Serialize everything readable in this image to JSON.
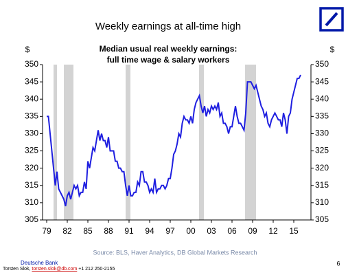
{
  "slide_title": "Weekly earnings at all-time high",
  "chart_data": {
    "type": "line",
    "title": [
      "Median usual real weekly earnings:",
      "full time wage & salary workers"
    ],
    "y_label": "$",
    "y2_label": "$",
    "x": [
      1979,
      1979.25,
      1979.5,
      1979.75,
      1980,
      1980.25,
      1980.5,
      1980.75,
      1981,
      1981.25,
      1981.5,
      1981.75,
      1982,
      1982.25,
      1982.5,
      1982.75,
      1983,
      1983.25,
      1983.5,
      1983.75,
      1984,
      1984.25,
      1984.5,
      1984.75,
      1985,
      1985.25,
      1985.5,
      1985.75,
      1986,
      1986.25,
      1986.5,
      1986.75,
      1987,
      1987.25,
      1987.5,
      1987.75,
      1988,
      1988.25,
      1988.5,
      1988.75,
      1989,
      1989.25,
      1989.5,
      1989.75,
      1990,
      1990.25,
      1990.5,
      1990.75,
      1991,
      1991.25,
      1991.5,
      1991.75,
      1992,
      1992.25,
      1992.5,
      1992.75,
      1993,
      1993.25,
      1993.5,
      1993.75,
      1994,
      1994.25,
      1994.5,
      1994.75,
      1995,
      1995.25,
      1995.5,
      1995.75,
      1996,
      1996.25,
      1996.5,
      1996.75,
      1997,
      1997.25,
      1997.5,
      1997.75,
      1998,
      1998.25,
      1998.5,
      1998.75,
      1999,
      1999.25,
      1999.5,
      1999.75,
      2000,
      2000.25,
      2000.5,
      2000.75,
      2001,
      2001.25,
      2001.5,
      2001.75,
      2002,
      2002.25,
      2002.5,
      2002.75,
      2003,
      2003.25,
      2003.5,
      2003.75,
      2004,
      2004.25,
      2004.5,
      2004.75,
      2005,
      2005.25,
      2005.5,
      2005.75,
      2006,
      2006.25,
      2006.5,
      2006.75,
      2007,
      2007.25,
      2007.5,
      2007.75,
      2008,
      2008.25,
      2008.5,
      2008.75,
      2009,
      2009.25,
      2009.5,
      2009.75,
      2010,
      2010.25,
      2010.5,
      2010.75,
      2011,
      2011.25,
      2011.5,
      2011.75,
      2012,
      2012.25,
      2012.5,
      2012.75,
      2013,
      2013.25,
      2013.5,
      2013.75,
      2014,
      2014.25,
      2014.5,
      2014.75,
      2015,
      2015.25,
      2015.5,
      2015.75,
      2016
    ],
    "series": [
      {
        "color": "#1f1fe0",
        "values": [
          335,
          335,
          330,
          325,
          320,
          315,
          319,
          314,
          313,
          312,
          311,
          309,
          312,
          313,
          311,
          313,
          315,
          314,
          315,
          312,
          313,
          313,
          316,
          314,
          322,
          320,
          323,
          326,
          325,
          328,
          331,
          328,
          330,
          328,
          328,
          326,
          329,
          325,
          325,
          325,
          322,
          322,
          320,
          320,
          319,
          319,
          315,
          312,
          315,
          312,
          312,
          313,
          313,
          316,
          315,
          319,
          319,
          316,
          316,
          315,
          313,
          314,
          313,
          317,
          313,
          314,
          314,
          315,
          315,
          314,
          315,
          317,
          317,
          320,
          324,
          325,
          327,
          330,
          329,
          333,
          335,
          334,
          334,
          333,
          335,
          333,
          337,
          339,
          340,
          341,
          338,
          336,
          338,
          335,
          337,
          336,
          338,
          337,
          338,
          337,
          339,
          335,
          336,
          333,
          333,
          332,
          330,
          332,
          332,
          335,
          338,
          335,
          333,
          333,
          332,
          331,
          336,
          345,
          345,
          345,
          344,
          343,
          344,
          342,
          340,
          338,
          337,
          335,
          336,
          333,
          332,
          334,
          335,
          336,
          335,
          334,
          334,
          332,
          336,
          334,
          330,
          335,
          336,
          340,
          342,
          344,
          346,
          346,
          347
        ]
      }
    ],
    "recessions": [
      [
        1980,
        1980.5
      ],
      [
        1981.5,
        1982.9
      ],
      [
        1990.5,
        1991.2
      ],
      [
        2001.2,
        2001.9
      ],
      [
        2007.9,
        2009.5
      ]
    ],
    "recession_color": "#d3d3d3",
    "xlim": [
      1978.4,
      2017.5
    ],
    "xticks": [
      {
        "value": 1979,
        "label": "79"
      },
      {
        "value": 1982,
        "label": "82"
      },
      {
        "value": 1985,
        "label": "85"
      },
      {
        "value": 1988,
        "label": "88"
      },
      {
        "value": 1991,
        "label": "91"
      },
      {
        "value": 1994,
        "label": "94"
      },
      {
        "value": 1997,
        "label": "97"
      },
      {
        "value": 2000,
        "label": "00"
      },
      {
        "value": 2003,
        "label": "03"
      },
      {
        "value": 2006,
        "label": "06"
      },
      {
        "value": 2009,
        "label": "09"
      },
      {
        "value": 2012,
        "label": "12"
      },
      {
        "value": 2015,
        "label": "15"
      }
    ],
    "ylim": [
      305,
      350
    ],
    "yticks": [
      305,
      310,
      315,
      320,
      325,
      330,
      335,
      340,
      345,
      350
    ],
    "y2lim": [
      305,
      350
    ],
    "y2ticks": [
      305,
      310,
      315,
      320,
      325,
      330,
      335,
      340,
      345,
      350
    ]
  },
  "source": "Source: BLS, Haver Analytics, DB Global Markets Research",
  "footer": {
    "company": "Deutsche Bank",
    "author": "Torsten Slok, ",
    "email": "torsten.slok@db.com",
    "phone": " +1 212 250-2155",
    "page": "6"
  }
}
